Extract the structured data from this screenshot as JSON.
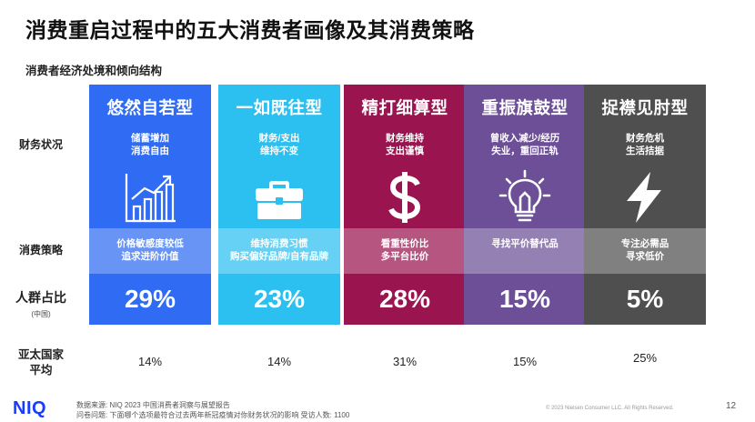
{
  "title": "消费重启过程中的五大消费者画像及其消费策略",
  "subtitle": "消费者经济处境和倾向结构",
  "row_labels": {
    "finance": "财务状况",
    "strategy": "消费策略",
    "share": "人群占比",
    "share_sub": "(中国)",
    "apac_line1": "亚太国家",
    "apac_line2": "平均"
  },
  "colors": {
    "card1": "#2f6bf3",
    "card2": "#2bc0f0",
    "card3": "#9a1450",
    "card4": "#6c4f96",
    "card5": "#4f4f4f",
    "logo": "#1a3cff"
  },
  "cards": [
    {
      "name": "悠然自若型",
      "finance": "储蓄增加\n消费自由",
      "icon": "bar-chart-growth-icon",
      "strategy": "价格敏感度较低\n追求进阶价值",
      "share": "29%",
      "apac": "14%"
    },
    {
      "name": "一如既往型",
      "finance": "财务/支出\n维持不变",
      "icon": "briefcase-icon",
      "strategy": "维持消费习惯\n购买偏好品牌/自有品牌",
      "share": "23%",
      "apac": "14%"
    },
    {
      "name": "精打细算型",
      "finance": "财务维持\n支出谨慎",
      "icon": "dollar-sign-icon",
      "strategy": "看重性价比\n多平台比价",
      "share": "28%",
      "apac": "31%"
    },
    {
      "name": "重振旗鼓型",
      "finance": "曾收入减少/经历\n失业，重回正轨",
      "icon": "light-bulb-icon",
      "strategy": "寻找平价替代品",
      "share": "15%",
      "apac": "15%"
    },
    {
      "name": "捉襟见肘型",
      "finance": "财务危机\n生活拮据",
      "icon": "lightning-bolt-icon",
      "strategy": "专注必需品\n寻求低价",
      "share": "5%",
      "apac": "25%"
    }
  ],
  "footer": {
    "logo": "NIQ",
    "source_line1": "数据来源: NIQ 2023 中国消费者洞察与展望报告",
    "source_line2": "问卷问题: 下面哪个选项最符合过去两年新冠疫情对你财务状况的影响 受访人数: 1100",
    "copyright": "© 2023 Nielsen Consumer LLC. All Rights Reserved.",
    "page_number": "12"
  }
}
